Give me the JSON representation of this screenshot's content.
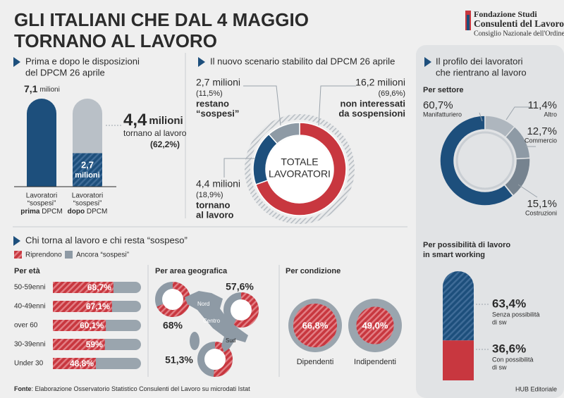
{
  "header": {
    "title": [
      "GLI ITALIANI CHE DAL 4 MAGGIO",
      "TORNANO AL LAVORO"
    ],
    "logo": [
      "Fondazione Studi",
      "Consulenti del Lavoro",
      "Consiglio Nazionale dell'Ordine"
    ]
  },
  "before_after": {
    "title": [
      "Prima e dopo le disposizioni",
      "del DPCM 26 aprile"
    ],
    "before": {
      "amount": {
        "value": 7.1,
        "label": "7,1"
      },
      "unit": "milioni",
      "caption": [
        "Lavoratori",
        "“sospesi”",
        "prima",
        " DPCM"
      ]
    },
    "after": {
      "amount": {
        "value": 2.7,
        "label": "2,7"
      },
      "unit": "milioni",
      "caption": [
        "Lavoratori",
        "“sospesi”",
        "dopo",
        " DPCM"
      ]
    },
    "returning": {
      "amount": "4,4",
      "unit": "milioni",
      "text": "tornano al lavoro",
      "share": "(62,2%)"
    }
  },
  "scenario": {
    "title": "Il nuovo scenario stabilito dal DPCM 26 aprile",
    "center": [
      "TOTALE",
      "LAVORATORI"
    ],
    "segments": [
      {
        "amount": "16,2 milioni",
        "share": {
          "value": 69.6,
          "label": "(69,6%)"
        },
        "text": [
          "non interessati",
          "da sospensioni"
        ]
      },
      {
        "amount": "4,4 milioni",
        "share": {
          "value": 18.9,
          "label": "(18,9%)"
        },
        "text": [
          "tornano",
          "al lavoro"
        ]
      },
      {
        "amount": "2,7 milioni",
        "share": {
          "value": 11.5,
          "label": "(11,5%)"
        },
        "text": [
          "restano",
          "“sospesi”"
        ]
      }
    ]
  },
  "profile": {
    "title": [
      "Il profilo dei lavoratori",
      "che rientrano al lavoro"
    ],
    "sector": {
      "title": "Per settore",
      "items": [
        {
          "name": "Manifatturiero",
          "share": {
            "value": 60.7,
            "label": "60,7%"
          }
        },
        {
          "name": "Altro",
          "share": {
            "value": 11.4,
            "label": "11,4%"
          }
        },
        {
          "name": "Commercio",
          "share": {
            "value": 12.7,
            "label": "12,7%"
          }
        },
        {
          "name": "Costruzioni",
          "share": {
            "value": 15.1,
            "label": "15,1%"
          }
        }
      ]
    },
    "smart": {
      "title": [
        "Per possibilità di lavoro",
        "in smart working"
      ],
      "items": [
        {
          "share": {
            "value": 63.4,
            "label": "63,4%"
          },
          "text": [
            "Senza possibilità",
            "di sw"
          ]
        },
        {
          "share": {
            "value": 36.6,
            "label": "36,6%"
          },
          "text": [
            "Con possibilità",
            "di sw"
          ]
        }
      ]
    }
  },
  "return_split": {
    "title": "Chi torna al lavoro e chi resta “sospeso”",
    "legend": [
      "Riprendono",
      "Ancora “sospesi”"
    ],
    "age": {
      "title": "Per età",
      "rows": [
        {
          "label": "50-59enni",
          "share": {
            "value": 68.7,
            "label": "68,7%"
          }
        },
        {
          "label": "40-49enni",
          "share": {
            "value": 67.1,
            "label": "67,1%"
          }
        },
        {
          "label": "over 60",
          "share": {
            "value": 60.1,
            "label": "60,1%"
          }
        },
        {
          "label": "30-39enni",
          "share": {
            "value": 59,
            "label": "59%"
          }
        },
        {
          "label": "Under 30",
          "share": {
            "value": 48.8,
            "label": "48,8%"
          }
        }
      ]
    },
    "area": {
      "title": "Per area geografica",
      "regions": [
        {
          "name": "Nord",
          "share": {
            "value": 68,
            "label": "68%"
          }
        },
        {
          "name": "Centro",
          "share": {
            "value": 57.6,
            "label": "57,6%"
          }
        },
        {
          "name": "Sud",
          "share": {
            "value": 51.3,
            "label": "51,3%"
          }
        }
      ]
    },
    "condition": {
      "title": "Per condizione",
      "items": [
        {
          "name": "Dipendenti",
          "share": {
            "value": 66.8,
            "label": "66,8%"
          }
        },
        {
          "name": "Indipendenti",
          "share": {
            "value": 49,
            "label": "49,0%"
          }
        }
      ]
    }
  },
  "footer": {
    "source_label": "Fonte",
    "source": ": Elaborazione Osservatorio Statistico Consulenti del Lavoro su microdati Istat",
    "credit": "HUB Editoriale"
  }
}
